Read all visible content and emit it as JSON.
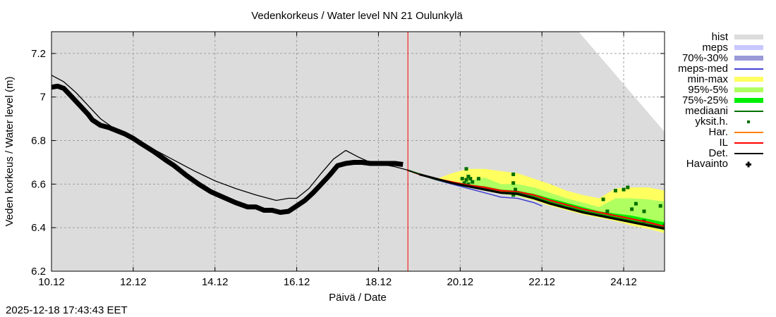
{
  "chart_data": {
    "type": "line",
    "title": "Vedenkorkeus / Water level   NN 21 Oulunkylä",
    "xlabel": "Päivä / Date",
    "ylabel": "Veden korkeus / Water level (m)",
    "timestamp": "2025-12-18 17:43:43 EET",
    "x_unit": "days since 10.12 00:00",
    "xlim": [
      0,
      15
    ],
    "ylim": [
      6.2,
      7.3
    ],
    "grid": true,
    "legend_position": "right",
    "x_ticks": [
      {
        "value": 0,
        "label": "10.12"
      },
      {
        "value": 2,
        "label": "12.12"
      },
      {
        "value": 4,
        "label": "14.12"
      },
      {
        "value": 6,
        "label": "16.12"
      },
      {
        "value": 8,
        "label": "18.12"
      },
      {
        "value": 10,
        "label": "20.12"
      },
      {
        "value": 12,
        "label": "22.12"
      },
      {
        "value": 14,
        "label": "24.12"
      }
    ],
    "y_ticks": [
      {
        "value": 6.2,
        "label": "6.2"
      },
      {
        "value": 6.4,
        "label": "6.4"
      },
      {
        "value": 6.6,
        "label": "6.6"
      },
      {
        "value": 6.8,
        "label": "6.8"
      },
      {
        "value": 7.0,
        "label": "7"
      },
      {
        "value": 7.2,
        "label": "7.2"
      }
    ],
    "now_line_x": 8.72,
    "colors": {
      "hist": "#dcdcdc",
      "meps": "#c8c8ff",
      "p70_30": "#9a9ad8",
      "meps_med": "#4040d0",
      "minmax": "#ffff60",
      "p95_5": "#b0ff60",
      "p75_25": "#00ee00",
      "mediaani": "#007000",
      "yksit": "#007000",
      "har": "#ff8000",
      "il": "#ff0000",
      "det": "#000000",
      "havainto": "#000000",
      "now_line": "#ff0000"
    },
    "legend": [
      {
        "key": "hist",
        "label": "hist",
        "kind": "band"
      },
      {
        "key": "meps",
        "label": "meps",
        "kind": "band"
      },
      {
        "key": "p70_30",
        "label": "70%-30%",
        "kind": "band"
      },
      {
        "key": "meps_med",
        "label": "meps-med",
        "kind": "line"
      },
      {
        "key": "minmax",
        "label": "min-max",
        "kind": "band"
      },
      {
        "key": "p95_5",
        "label": "95%-5%",
        "kind": "band"
      },
      {
        "key": "p75_25",
        "label": "75%-25%",
        "kind": "band"
      },
      {
        "key": "mediaani",
        "label": "mediaani",
        "kind": "line"
      },
      {
        "key": "yksit",
        "label": "yksit.h.",
        "kind": "dot"
      },
      {
        "key": "har",
        "label": "Har.",
        "kind": "line"
      },
      {
        "key": "il",
        "label": "IL",
        "kind": "line"
      },
      {
        "key": "det",
        "label": "Det.",
        "kind": "line"
      },
      {
        "key": "havainto",
        "label": "Havainto",
        "kind": "cross"
      }
    ],
    "hist_upper": {
      "x": [
        0,
        12.9,
        15
      ],
      "y": [
        7.3,
        7.3,
        6.84
      ]
    },
    "series": [
      {
        "name": "Havainto",
        "x": [
          0,
          0.15,
          0.3,
          0.5,
          0.7,
          0.9,
          1.0,
          1.2,
          1.4,
          1.6,
          1.8,
          2.0,
          2.2,
          2.5,
          2.8,
          3.0,
          3.3,
          3.6,
          3.9,
          4.2,
          4.5,
          4.8,
          5.0,
          5.2,
          5.4,
          5.6,
          5.8,
          6.0,
          6.2,
          6.4,
          6.6,
          6.8,
          7.0,
          7.2,
          7.4,
          7.6,
          7.8,
          8.0,
          8.2,
          8.4,
          8.6
        ],
        "y": [
          7.045,
          7.05,
          7.04,
          7.0,
          6.96,
          6.92,
          6.895,
          6.87,
          6.86,
          6.845,
          6.83,
          6.81,
          6.785,
          6.75,
          6.71,
          6.685,
          6.64,
          6.6,
          6.565,
          6.54,
          6.515,
          6.495,
          6.495,
          6.48,
          6.48,
          6.47,
          6.475,
          6.5,
          6.525,
          6.56,
          6.6,
          6.64,
          6.685,
          6.695,
          6.7,
          6.7,
          6.695,
          6.695,
          6.695,
          6.695,
          6.69
        ]
      },
      {
        "name": "Det.",
        "x": [
          0,
          0.3,
          0.6,
          0.9,
          1.2,
          1.5,
          2.0,
          2.5,
          3.0,
          3.5,
          4.0,
          4.5,
          5.0,
          5.5,
          5.8,
          6.0,
          6.3,
          6.6,
          6.9,
          7.2,
          7.5,
          7.8,
          8.1,
          8.4,
          8.7,
          9.0,
          9.4,
          9.8,
          10.2,
          10.6,
          11.0,
          11.4,
          11.8,
          12.2,
          12.6,
          13.0,
          13.4,
          13.8,
          14.2,
          14.6,
          15.0
        ],
        "y": [
          7.1,
          7.07,
          7.02,
          6.96,
          6.9,
          6.86,
          6.815,
          6.76,
          6.71,
          6.66,
          6.615,
          6.58,
          6.55,
          6.525,
          6.535,
          6.535,
          6.58,
          6.65,
          6.715,
          6.755,
          6.725,
          6.7,
          6.69,
          6.68,
          6.665,
          6.645,
          6.625,
          6.605,
          6.59,
          6.575,
          6.56,
          6.555,
          6.535,
          6.51,
          6.49,
          6.47,
          6.455,
          6.44,
          6.425,
          6.41,
          6.395
        ]
      },
      {
        "name": "IL",
        "x": [
          8.7,
          9.0,
          9.4,
          9.8,
          10.2,
          10.6,
          11.0,
          11.4,
          11.8,
          12.2,
          12.6,
          13.0,
          13.4,
          13.8,
          14.2,
          14.6,
          15.0
        ],
        "y": [
          6.665,
          6.645,
          6.625,
          6.61,
          6.595,
          6.585,
          6.57,
          6.565,
          6.55,
          6.525,
          6.505,
          6.485,
          6.47,
          6.455,
          6.44,
          6.425,
          6.405
        ]
      },
      {
        "name": "Har.",
        "x": [
          8.7,
          9.4,
          9.8,
          10.2,
          10.6,
          11.0
        ],
        "y": [
          6.665,
          6.625,
          6.608,
          6.592,
          6.58,
          6.565
        ]
      },
      {
        "name": "meps-med",
        "x": [
          8.7,
          9.4,
          9.8,
          10.2,
          10.6,
          11.0,
          11.4,
          11.8,
          12.0
        ],
        "y": [
          6.665,
          6.62,
          6.6,
          6.58,
          6.56,
          6.54,
          6.535,
          6.515,
          6.5
        ]
      },
      {
        "name": "mediaani",
        "x": [
          8.7,
          9.4,
          9.8,
          10.2,
          10.6,
          11.0,
          11.4,
          11.8,
          12.2,
          12.6,
          13.0,
          13.4,
          13.8,
          14.2,
          14.6,
          15.0
        ],
        "y": [
          6.665,
          6.622,
          6.605,
          6.59,
          6.578,
          6.562,
          6.56,
          6.54,
          6.515,
          6.495,
          6.475,
          6.46,
          6.445,
          6.43,
          6.415,
          6.4
        ]
      }
    ],
    "bands": [
      {
        "name": "min-max",
        "x": [
          9.4,
          9.8,
          10.2,
          10.6,
          11.0,
          11.4,
          11.8,
          12.2,
          12.6,
          13.0,
          13.4,
          13.8,
          14.2,
          14.6,
          15.0
        ],
        "upper": [
          6.622,
          6.65,
          6.67,
          6.67,
          6.66,
          6.65,
          6.625,
          6.6,
          6.57,
          6.55,
          6.535,
          6.58,
          6.585,
          6.585,
          6.57
        ],
        "lower": [
          6.618,
          6.6,
          6.585,
          6.57,
          6.555,
          6.545,
          6.525,
          6.5,
          6.48,
          6.46,
          6.445,
          6.43,
          6.41,
          6.395,
          6.375
        ]
      },
      {
        "name": "95%-5%",
        "x": [
          9.8,
          10.2,
          10.6,
          11.0,
          11.4,
          11.8,
          12.2,
          12.6,
          13.0,
          13.4,
          13.8,
          14.2,
          14.6,
          15.0
        ],
        "upper": [
          6.605,
          6.615,
          6.63,
          6.6,
          6.6,
          6.585,
          6.56,
          6.535,
          6.515,
          6.495,
          6.535,
          6.535,
          6.53,
          6.52
        ],
        "lower": [
          6.598,
          6.585,
          6.57,
          6.555,
          6.545,
          6.53,
          6.505,
          6.485,
          6.465,
          6.45,
          6.435,
          6.42,
          6.405,
          6.385
        ]
      },
      {
        "name": "75%-25%",
        "x": [
          9.8,
          10.2,
          10.6,
          11.0,
          11.4,
          11.8,
          12.2,
          12.6,
          13.0,
          13.4,
          13.8,
          14.2,
          14.6,
          15.0
        ],
        "upper": [
          6.605,
          6.6,
          6.59,
          6.575,
          6.57,
          6.555,
          6.535,
          6.515,
          6.495,
          6.475,
          6.465,
          6.455,
          6.44,
          6.425
        ],
        "lower": [
          6.598,
          6.585,
          6.57,
          6.558,
          6.55,
          6.535,
          6.51,
          6.49,
          6.47,
          6.455,
          6.44,
          6.425,
          6.41,
          6.395
        ]
      }
    ],
    "yksit_points": [
      {
        "x": 10.15,
        "y": 6.67
      },
      {
        "x": 10.2,
        "y": 6.635
      },
      {
        "x": 10.25,
        "y": 6.625
      },
      {
        "x": 10.15,
        "y": 6.62
      },
      {
        "x": 10.3,
        "y": 6.61
      },
      {
        "x": 10.2,
        "y": 6.6
      },
      {
        "x": 10.45,
        "y": 6.625
      },
      {
        "x": 10.05,
        "y": 6.625
      },
      {
        "x": 10.1,
        "y": 6.605
      },
      {
        "x": 11.3,
        "y": 6.645
      },
      {
        "x": 11.3,
        "y": 6.605
      },
      {
        "x": 11.35,
        "y": 6.575
      },
      {
        "x": 11.3,
        "y": 6.55
      },
      {
        "x": 13.5,
        "y": 6.53
      },
      {
        "x": 13.8,
        "y": 6.57
      },
      {
        "x": 14.0,
        "y": 6.575
      },
      {
        "x": 14.1,
        "y": 6.585
      },
      {
        "x": 13.6,
        "y": 6.475
      },
      {
        "x": 14.3,
        "y": 6.51
      },
      {
        "x": 14.5,
        "y": 6.475
      },
      {
        "x": 14.2,
        "y": 6.485
      },
      {
        "x": 14.5,
        "y": 6.43
      },
      {
        "x": 14.9,
        "y": 6.5
      },
      {
        "x": 15.0,
        "y": 6.41
      }
    ]
  }
}
